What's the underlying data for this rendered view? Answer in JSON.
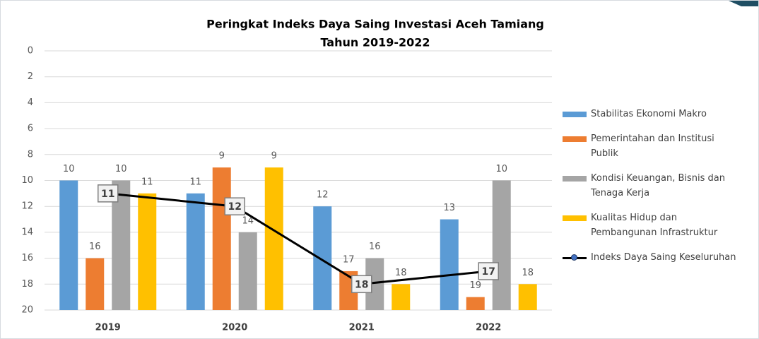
{
  "chart_data": {
    "type": "bar",
    "title": [
      "Peringkat Indeks Daya Saing Investasi Aceh Tamiang",
      "Tahun 2019-2022"
    ],
    "categories": [
      "2019",
      "2020",
      "2021",
      "2022"
    ],
    "series": [
      {
        "name": "Stabilitas Ekonomi Makro",
        "color": "#5b9bd5",
        "values": [
          10,
          11,
          12,
          13
        ]
      },
      {
        "name": "Pemerintahan dan Institusi Publik",
        "color": "#ed7d31",
        "values": [
          16,
          9,
          17,
          19
        ]
      },
      {
        "name": "Kondisi Keuangan, Bisnis dan Tenaga Kerja",
        "color": "#a5a5a5",
        "values": [
          10,
          14,
          16,
          10
        ]
      },
      {
        "name": "Kualitas Hidup dan Pembangunan Infrastruktur",
        "color": "#ffc000",
        "values": [
          11,
          9,
          18,
          18
        ]
      },
      {
        "name": "Indeks Daya Saing Keseluruhan",
        "color": "#000000",
        "type": "line",
        "values": [
          11,
          12,
          18,
          17
        ]
      }
    ],
    "ylim": [
      0,
      20
    ],
    "yticks": [
      0,
      2,
      4,
      6,
      8,
      10,
      12,
      14,
      16,
      18,
      20
    ],
    "y_inverted": true,
    "grid": true,
    "legend": "right"
  }
}
